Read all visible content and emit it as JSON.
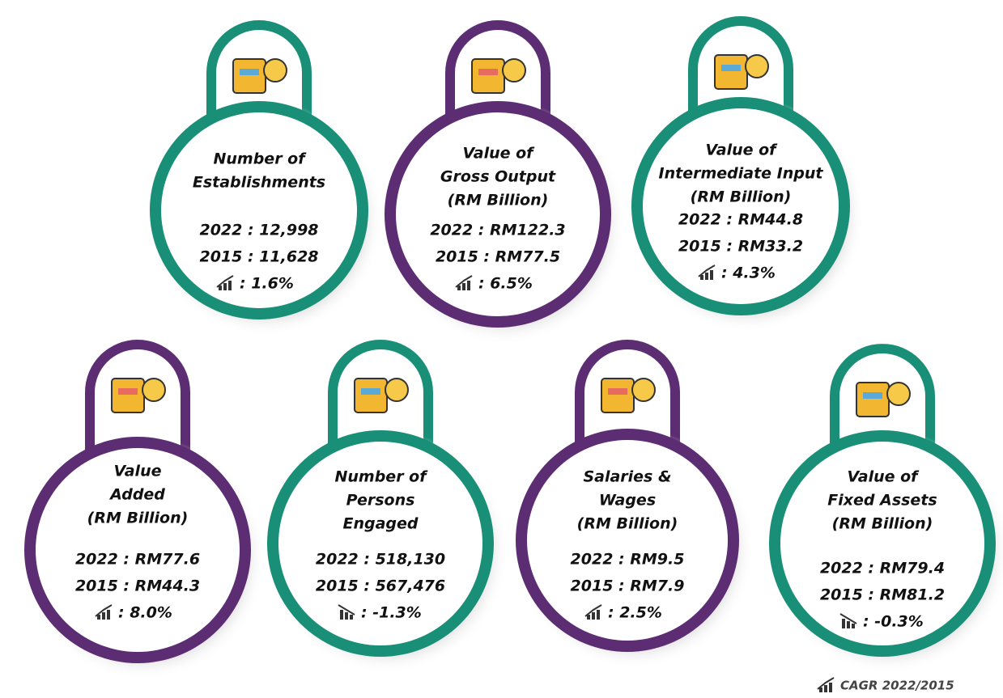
{
  "cards": [
    {
      "title": [
        "Number of",
        "Establishments"
      ],
      "year_2022": "2022 : 12,998",
      "year_2015": "2015 : 11,628",
      "cagr": ": 1.6%"
    },
    {
      "title": [
        "Value of",
        "Gross Output",
        "(RM Billion)"
      ],
      "year_2022": "2022 : RM122.3",
      "year_2015": "2015 : RM77.5",
      "cagr": ": 6.5%"
    },
    {
      "title": [
        "Value of",
        "Intermediate Input",
        "(RM Billion)"
      ],
      "year_2022": "2022 : RM44.8",
      "year_2015": "2015 : RM33.2",
      "cagr": ": 4.3%"
    },
    {
      "title": [
        "Value",
        "Added",
        "(RM Billion)"
      ],
      "year_2022": "2022 : RM77.6",
      "year_2015": "2015 : RM44.3",
      "cagr": ": 8.0%"
    },
    {
      "title": [
        "Number of",
        "Persons",
        "Engaged"
      ],
      "year_2022": "2022 : 518,130",
      "year_2015": "2015 : 567,476",
      "cagr": ": -1.3%"
    },
    {
      "title": [
        "Salaries &",
        "Wages",
        "(RM Billion)"
      ],
      "year_2022": "2022 : RM9.5",
      "year_2015": "2015 : RM7.9",
      "cagr": ": 2.5%"
    },
    {
      "title": [
        "Value of",
        "Fixed Assets",
        "(RM Billion)"
      ],
      "year_2022": "2022 : RM79.4",
      "year_2015": "2015 : RM81.2",
      "cagr": ": -0.3%"
    }
  ],
  "legend": "CAGR 2022/2015"
}
